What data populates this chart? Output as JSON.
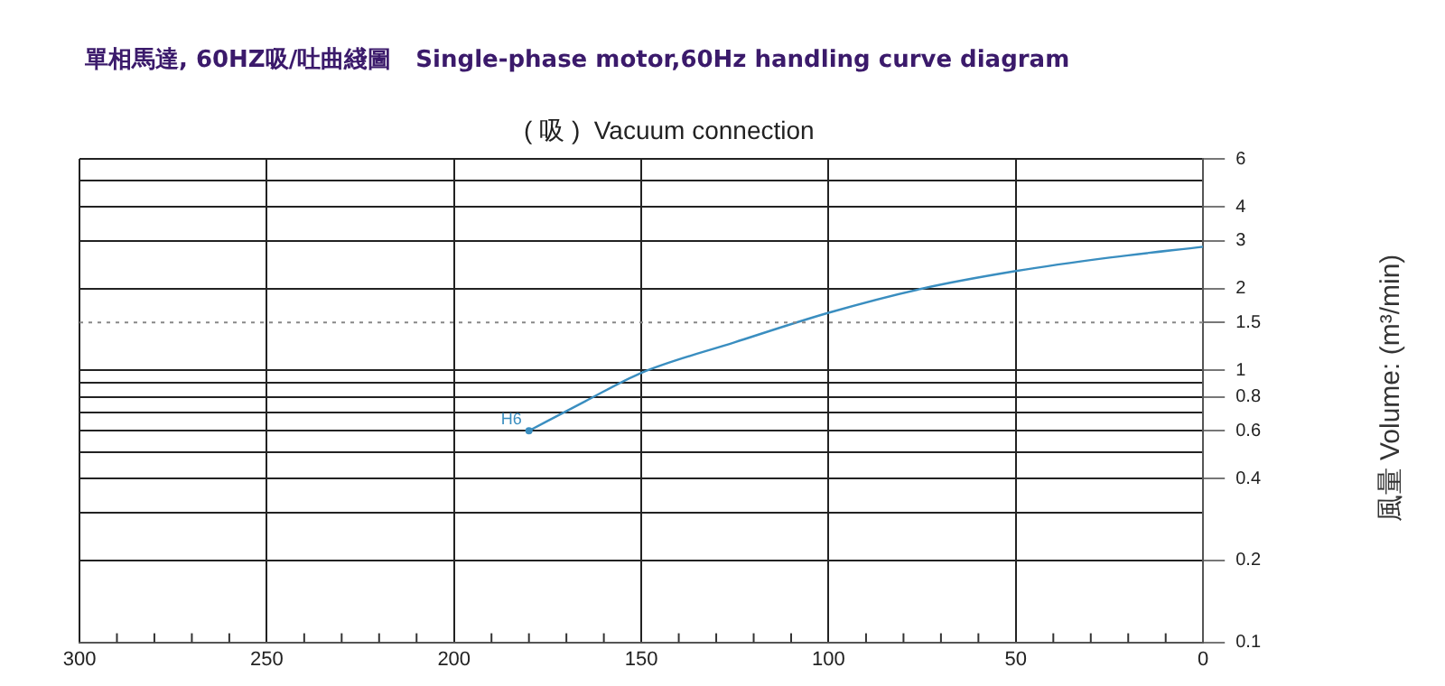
{
  "chart_data": {
    "type": "line",
    "title": "單相馬達, 60HZ吸/吐曲綫圖   Single-phase motor,60Hz handling curve diagram",
    "subtitle": "( 吸 )  Vacuum connection",
    "ylabel": "風量 Volume: (m³/min)",
    "series": [
      {
        "color": "#3a8ec0",
        "x": [
          180,
          165,
          150,
          125,
          100,
          75,
          50,
          25,
          0
        ],
        "values": [
          0.6,
          0.77,
          0.98,
          1.27,
          1.63,
          2.0,
          2.32,
          2.6,
          2.85
        ]
      }
    ],
    "xlim": [
      300,
      0
    ],
    "xticks": [
      300,
      {
        "value": 290,
        "label": null
      },
      {
        "value": 280,
        "label": null
      },
      {
        "value": 270,
        "label": null
      },
      {
        "value": 260,
        "label": null
      },
      250,
      {
        "value": 240,
        "label": null
      },
      {
        "value": 230,
        "label": null
      },
      {
        "value": 220,
        "label": null
      },
      {
        "value": 210,
        "label": null
      },
      200,
      {
        "value": 190,
        "label": null
      },
      {
        "value": 180,
        "label": null
      },
      {
        "value": 170,
        "label": null
      },
      {
        "value": 160,
        "label": null
      },
      150,
      {
        "value": 140,
        "label": null
      },
      {
        "value": 130,
        "label": null
      },
      {
        "value": 120,
        "label": null
      },
      {
        "value": 110,
        "label": null
      },
      100,
      {
        "value": 90,
        "label": null
      },
      {
        "value": 80,
        "label": null
      },
      {
        "value": 70,
        "label": null
      },
      {
        "value": 60,
        "label": null
      },
      50,
      {
        "value": 40,
        "label": null
      },
      {
        "value": 30,
        "label": null
      },
      {
        "value": 20,
        "label": null
      },
      {
        "value": 10,
        "label": null
      },
      0
    ],
    "ylim": [
      0.1,
      6
    ],
    "yticks": [
      0.1,
      0.2,
      {
        "value": 0.3,
        "label": null
      },
      0.4,
      {
        "value": 0.5,
        "label": null
      },
      0.6,
      {
        "value": 0.7,
        "label": null
      },
      0.8,
      {
        "value": 0.9,
        "label": null
      },
      1,
      1.5,
      2,
      3,
      4,
      {
        "value": 5,
        "label": null
      },
      6
    ],
    "log": "y",
    "grid": true,
    "marker": "none",
    "line_style": "solid",
    "ref_lines": [
      {
        "axis": "y",
        "value": 1.5,
        "line_style": "dotted",
        "color": "#888888"
      }
    ],
    "annotations": [
      {
        "text": "H6",
        "x": 180,
        "y": 0.6
      }
    ]
  }
}
